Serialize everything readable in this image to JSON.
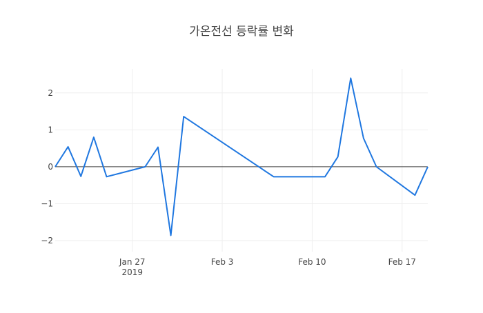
{
  "chart_data": {
    "type": "line",
    "title": "가온전선 등락률 변화",
    "xlabel": "",
    "ylabel": "",
    "x_range": [
      "2019-01-21",
      "2019-02-19"
    ],
    "ylim": [
      -2.3,
      2.65
    ],
    "x_ticks": [
      {
        "date": "2019-01-27",
        "label": "Jan 27",
        "sublabel": "2019"
      },
      {
        "date": "2019-02-03",
        "label": "Feb 3",
        "sublabel": ""
      },
      {
        "date": "2019-02-10",
        "label": "Feb 10",
        "sublabel": ""
      },
      {
        "date": "2019-02-17",
        "label": "Feb 17",
        "sublabel": ""
      }
    ],
    "y_ticks": [
      {
        "value": 2,
        "label": "2"
      },
      {
        "value": 1,
        "label": "1"
      },
      {
        "value": 0,
        "label": "0"
      },
      {
        "value": -1,
        "label": "−1"
      },
      {
        "value": -2,
        "label": "−2"
      }
    ],
    "grid": true,
    "zero_line": true,
    "series": [
      {
        "color": "#1f77e0",
        "x": [
          "2019-01-21",
          "2019-01-22",
          "2019-01-23",
          "2019-01-24",
          "2019-01-25",
          "2019-01-28",
          "2019-01-29",
          "2019-01-30",
          "2019-01-31",
          "2019-02-07",
          "2019-02-08",
          "2019-02-11",
          "2019-02-12",
          "2019-02-13",
          "2019-02-14",
          "2019-02-15",
          "2019-02-18",
          "2019-02-19"
        ],
        "y": [
          0,
          0.54,
          -0.26,
          0.8,
          -0.27,
          0,
          0.53,
          -1.86,
          1.36,
          -0.27,
          -0.27,
          -0.27,
          0.27,
          2.4,
          0.77,
          0,
          -0.77,
          0
        ]
      }
    ]
  }
}
